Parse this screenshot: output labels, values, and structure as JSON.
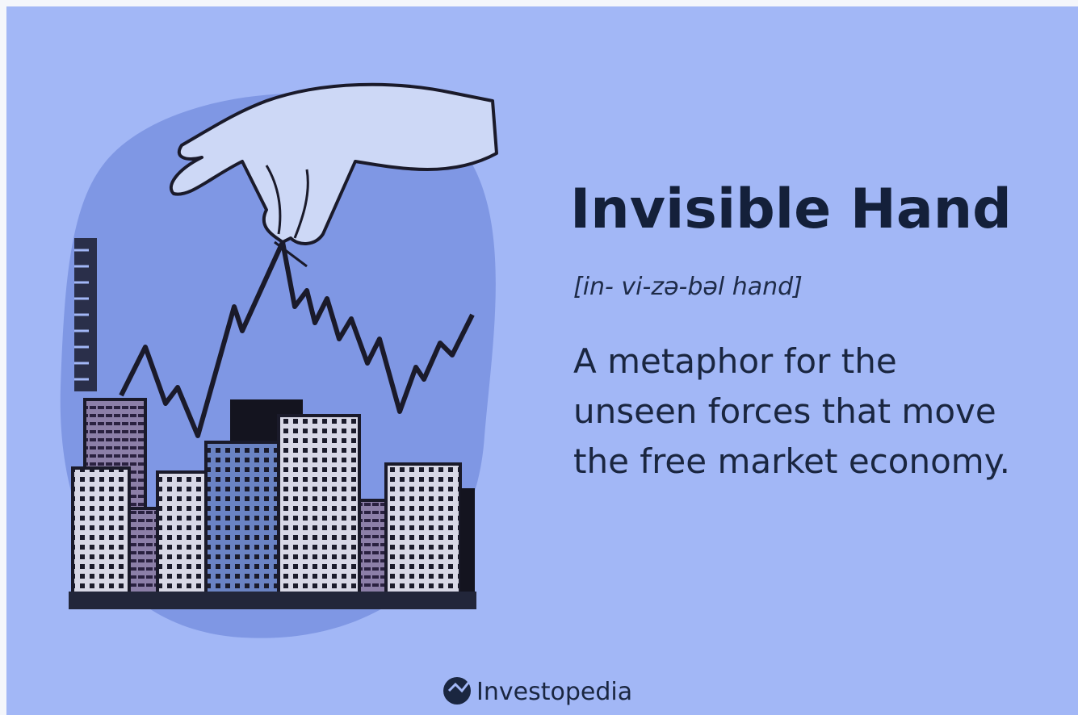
{
  "header": {
    "title": "Invisible Hand",
    "pronunciation": "[in- vi-zə-bəl hand]"
  },
  "definition": {
    "lines": [
      "A metaphor for the",
      "unseen forces that move",
      "the free market economy."
    ]
  },
  "footer": {
    "brand": "Investopedia"
  }
}
